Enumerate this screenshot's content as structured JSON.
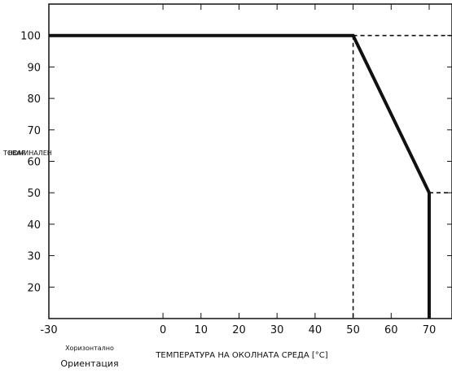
{
  "chart_data": {
    "type": "line",
    "xlabel": "ТЕМПЕРАТУРА НА ОКОЛНАТА СРЕДА [°C]",
    "ylabel_line1": "ТОВАР",
    "ylabel_line2": "НОМИНАЛЕН",
    "orientation_value": "Хоризонтално",
    "orientation_label": "Ориентация",
    "xlim": [
      -30,
      76
    ],
    "ylim": [
      10,
      110
    ],
    "x_ticks": [
      -30,
      0,
      10,
      20,
      30,
      40,
      50,
      60,
      70
    ],
    "y_ticks": [
      20,
      30,
      40,
      50,
      60,
      70,
      80,
      90,
      100
    ],
    "grid": false,
    "series": [
      {
        "style": "solid",
        "color": "#111111",
        "points": [
          [
            -30,
            100
          ],
          [
            50,
            100
          ],
          [
            70,
            50
          ],
          [
            70,
            10
          ]
        ]
      }
    ],
    "reference_lines": [
      {
        "style": "dashed",
        "points": [
          [
            50,
            100
          ],
          [
            76,
            100
          ]
        ]
      },
      {
        "style": "dashed",
        "points": [
          [
            50,
            100
          ],
          [
            50,
            10
          ]
        ]
      },
      {
        "style": "dashed",
        "points": [
          [
            70,
            50
          ],
          [
            76,
            50
          ]
        ]
      }
    ]
  }
}
